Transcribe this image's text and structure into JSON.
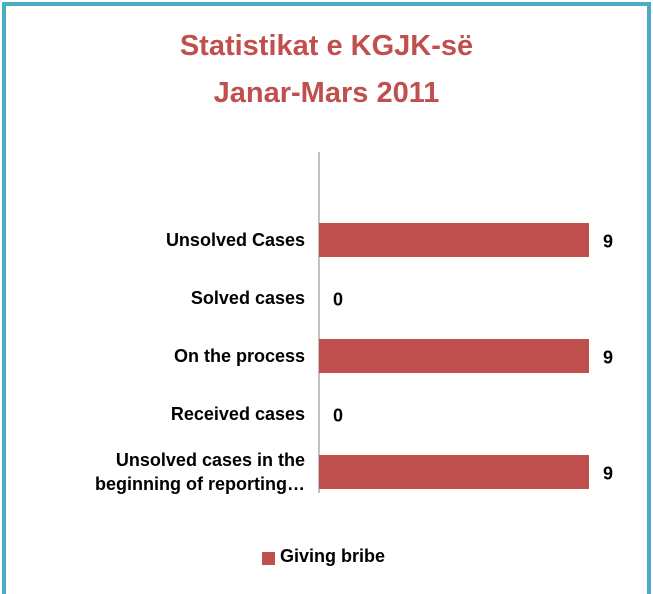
{
  "chart_data": {
    "type": "bar",
    "orientation": "horizontal",
    "title": [
      "Statistikat e KGJK-së",
      "Janar-Mars 2011"
    ],
    "categories": [
      "Unsolved Cases",
      "Solved cases",
      "On the process",
      "Received cases",
      "Unsolved cases in the beginning of reporting…"
    ],
    "series": [
      {
        "name": "Giving bribe",
        "color": "#c0504d",
        "values": [
          9,
          0,
          9,
          0,
          9
        ]
      }
    ],
    "legend": "bottom"
  }
}
